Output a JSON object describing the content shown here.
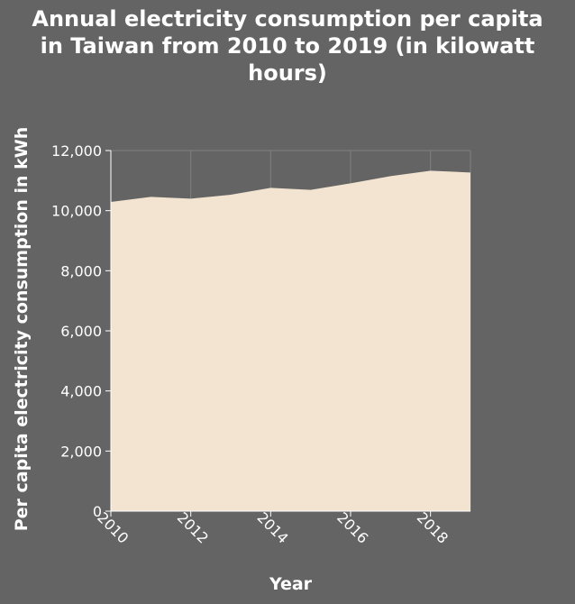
{
  "chart_data": {
    "type": "area",
    "title": "Annual electricity consumption per capita\nin Taiwan from 2010 to 2019 (in kilowatt\nhours)",
    "xlabel": "Year",
    "ylabel": "Per capita electricity consumption in kWh",
    "x": [
      2010,
      2011,
      2012,
      2013,
      2014,
      2015,
      2016,
      2017,
      2018,
      2019
    ],
    "values": [
      10290,
      10460,
      10400,
      10530,
      10760,
      10690,
      10910,
      11150,
      11330,
      11270
    ],
    "xlim": [
      2010,
      2019
    ],
    "ylim": [
      0,
      12000
    ],
    "x_ticks": [
      2010,
      2012,
      2014,
      2016,
      2018
    ],
    "x_tick_labels": [
      "2010",
      "2012",
      "2014",
      "2016",
      "2018"
    ],
    "y_ticks": [
      0,
      2000,
      4000,
      6000,
      8000,
      10000,
      12000
    ],
    "y_tick_labels": [
      "0",
      "2,000",
      "4,000",
      "6,000",
      "8,000",
      "10,000",
      "12,000"
    ],
    "grid": true,
    "colors": {
      "area": "#f2e4d0",
      "grid": "#808080",
      "background": "#646464"
    }
  }
}
